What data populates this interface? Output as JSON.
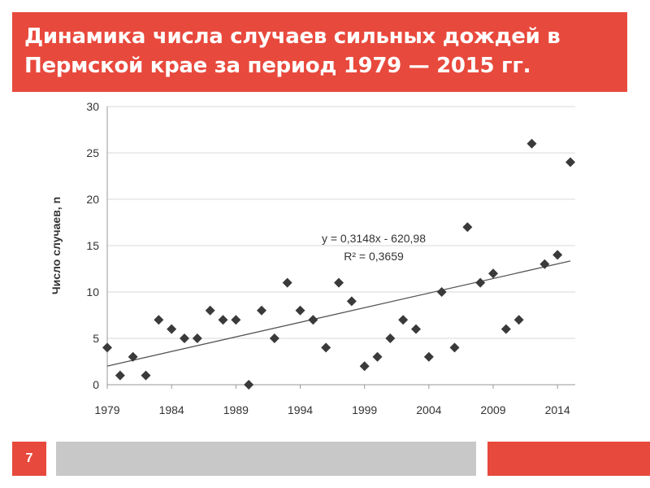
{
  "header": {
    "title": "Динамика числа случаев сильных дождей в Пермской крае за период 1979 — 2015 гг."
  },
  "footer": {
    "page_number": "7"
  },
  "colors": {
    "accent": "#e8493d",
    "footer_gray": "#c8c8c8",
    "marker": "#3a3a3a",
    "trendline": "#555555",
    "grid": "#d9d9d9"
  },
  "chart_data": {
    "type": "scatter",
    "title": "",
    "xlabel": "",
    "ylabel": "Число случаев, n",
    "xlim": [
      1979,
      2015
    ],
    "ylim": [
      0,
      30
    ],
    "x_ticks": [
      1979,
      1984,
      1989,
      1994,
      1999,
      2004,
      2009,
      2014
    ],
    "y_ticks": [
      0,
      5,
      10,
      15,
      20,
      25,
      30
    ],
    "grid": "horizontal",
    "series": [
      {
        "name": "Число случаев",
        "marker": "diamond",
        "x": [
          1979,
          1980,
          1981,
          1982,
          1983,
          1984,
          1985,
          1986,
          1987,
          1988,
          1989,
          1990,
          1991,
          1992,
          1993,
          1994,
          1995,
          1996,
          1997,
          1998,
          1999,
          2000,
          2001,
          2002,
          2003,
          2004,
          2005,
          2006,
          2007,
          2008,
          2009,
          2010,
          2011,
          2012,
          2013,
          2014,
          2015
        ],
        "y": [
          4,
          1,
          3,
          1,
          7,
          6,
          5,
          5,
          8,
          7,
          7,
          0,
          8,
          5,
          11,
          8,
          7,
          4,
          11,
          9,
          2,
          3,
          5,
          7,
          6,
          3,
          10,
          4,
          17,
          11,
          12,
          6,
          7,
          26,
          13,
          14,
          24
        ]
      }
    ],
    "trendline": {
      "slope": 0.3148,
      "intercept": -620.98,
      "equation": "y = 0,3148x - 620,98",
      "r_squared": "R² = 0,3659"
    }
  }
}
